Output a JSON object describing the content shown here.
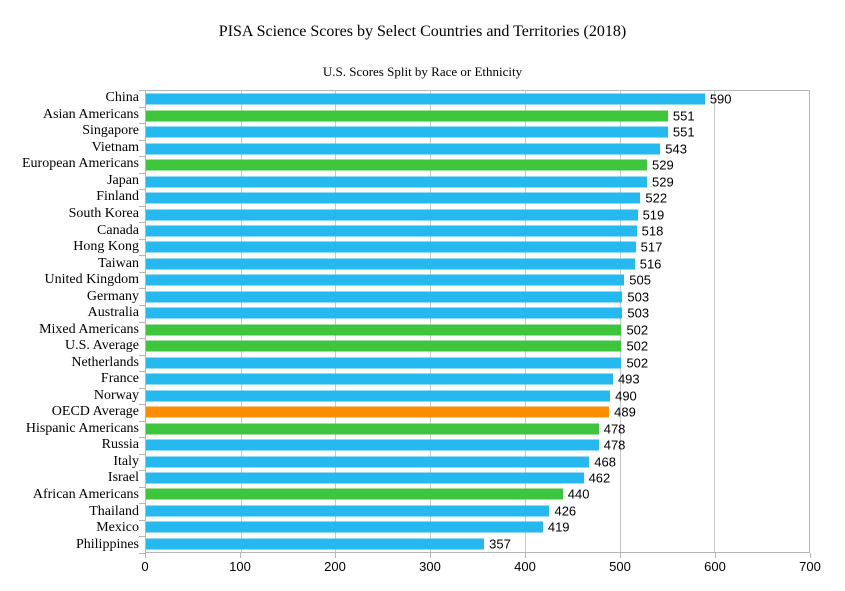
{
  "chart_data": {
    "type": "bar",
    "orientation": "horizontal",
    "title": "PISA Science Scores by Select Countries and Territories (2018)",
    "subtitle": "U.S. Scores Split by Race or Ethnicity",
    "xlim": [
      0,
      700
    ],
    "x_ticks": [
      0,
      100,
      200,
      300,
      400,
      500,
      600,
      700
    ],
    "grid": "vertical",
    "legend": "none",
    "value_labels": "shown at bar end",
    "colors": {
      "country": "#26b9f0",
      "us_subgroup": "#3dc53d",
      "oecd_average": "#fc8d04"
    },
    "bars": [
      {
        "label": "China",
        "value": 590,
        "group": "country"
      },
      {
        "label": "Asian Americans",
        "value": 551,
        "group": "us_subgroup"
      },
      {
        "label": "Singapore",
        "value": 551,
        "group": "country"
      },
      {
        "label": "Vietnam",
        "value": 543,
        "group": "country"
      },
      {
        "label": "European Americans",
        "value": 529,
        "group": "us_subgroup"
      },
      {
        "label": "Japan",
        "value": 529,
        "group": "country"
      },
      {
        "label": "Finland",
        "value": 522,
        "group": "country"
      },
      {
        "label": "South Korea",
        "value": 519,
        "group": "country"
      },
      {
        "label": "Canada",
        "value": 518,
        "group": "country"
      },
      {
        "label": "Hong Kong",
        "value": 517,
        "group": "country"
      },
      {
        "label": "Taiwan",
        "value": 516,
        "group": "country"
      },
      {
        "label": "United Kingdom",
        "value": 505,
        "group": "country"
      },
      {
        "label": "Germany",
        "value": 503,
        "group": "country"
      },
      {
        "label": "Australia",
        "value": 503,
        "group": "country"
      },
      {
        "label": "Mixed Americans",
        "value": 502,
        "group": "us_subgroup"
      },
      {
        "label": "U.S. Average",
        "value": 502,
        "group": "us_subgroup"
      },
      {
        "label": "Netherlands",
        "value": 502,
        "group": "country"
      },
      {
        "label": "France",
        "value": 493,
        "group": "country"
      },
      {
        "label": "Norway",
        "value": 490,
        "group": "country"
      },
      {
        "label": "OECD Average",
        "value": 489,
        "group": "oecd_average"
      },
      {
        "label": "Hispanic Americans",
        "value": 478,
        "group": "us_subgroup"
      },
      {
        "label": "Russia",
        "value": 478,
        "group": "country"
      },
      {
        "label": "Italy",
        "value": 468,
        "group": "country"
      },
      {
        "label": "Israel",
        "value": 462,
        "group": "country"
      },
      {
        "label": "African Americans",
        "value": 440,
        "group": "us_subgroup"
      },
      {
        "label": "Thailand",
        "value": 426,
        "group": "country"
      },
      {
        "label": "Mexico",
        "value": 419,
        "group": "country"
      },
      {
        "label": "Philippines",
        "value": 357,
        "group": "country"
      }
    ]
  }
}
